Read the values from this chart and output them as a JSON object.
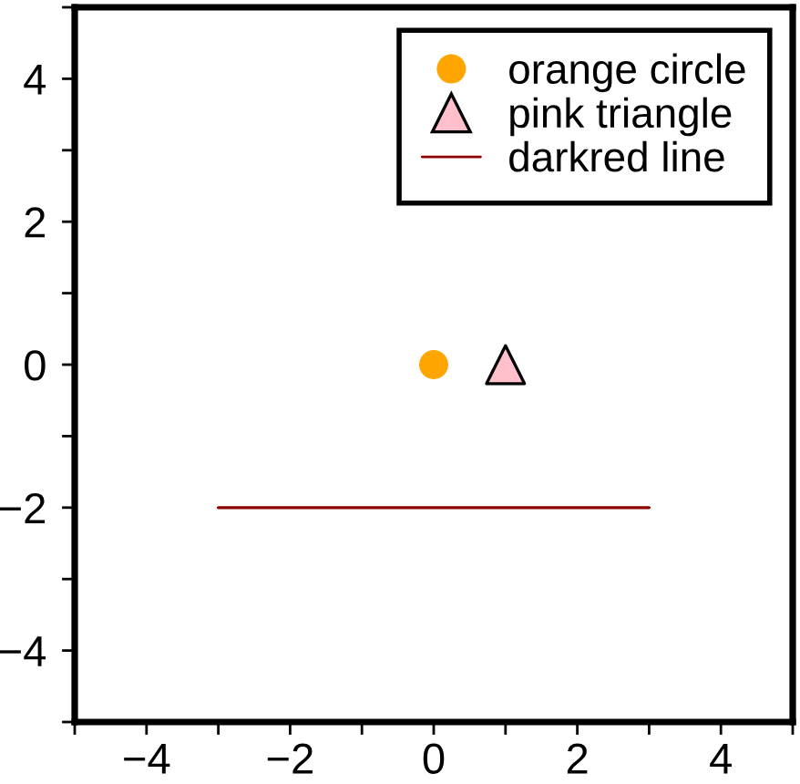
{
  "chart_data": {
    "type": "scatter",
    "series": [
      {
        "name": "orange circle",
        "marker": "circle",
        "color": "#ffa500",
        "x": [
          0
        ],
        "values": [
          0
        ]
      },
      {
        "name": "pink triangle",
        "marker": "triangle",
        "color": "#ffc0cb",
        "x": [
          1
        ],
        "values": [
          0
        ]
      },
      {
        "name": "darkred line",
        "type": "line",
        "marker": "none",
        "line_style": "solid",
        "color": "#8b0000",
        "x": [
          -3,
          3
        ],
        "values": [
          -2,
          -2
        ]
      }
    ],
    "xlim": [
      -5,
      5
    ],
    "ylim": [
      -5,
      5
    ],
    "xticks": [
      {
        "value": -5,
        "label": null
      },
      {
        "value": -4,
        "label": "−4"
      },
      {
        "value": -3,
        "label": null
      },
      {
        "value": -2,
        "label": "−2"
      },
      {
        "value": -1,
        "label": null
      },
      0,
      {
        "value": 1,
        "label": null
      },
      2,
      {
        "value": 3,
        "label": null
      },
      4,
      {
        "value": 5,
        "label": null
      }
    ],
    "yticks": [
      {
        "value": -5,
        "label": null
      },
      {
        "value": -4,
        "label": "−4"
      },
      {
        "value": -3,
        "label": null
      },
      {
        "value": -2,
        "label": "−2"
      },
      {
        "value": -1,
        "label": null
      },
      0,
      {
        "value": 1,
        "label": null
      },
      2,
      {
        "value": 3,
        "label": null
      },
      4,
      {
        "value": 5,
        "label": null
      }
    ],
    "grid": false,
    "legend": "top right"
  }
}
